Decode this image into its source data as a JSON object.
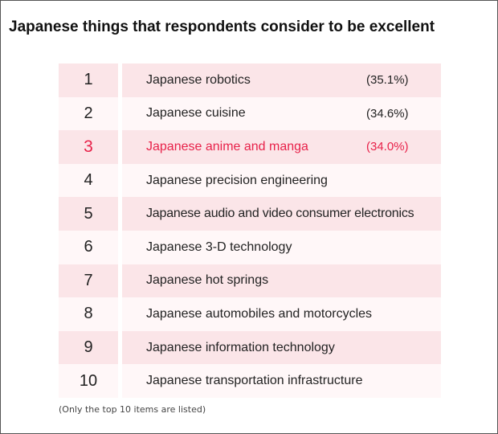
{
  "title": "Japanese things that respondents consider to be excellent",
  "highlight_color": "#e8224a",
  "row_colors": {
    "odd": "#fbe5e8",
    "even": "#fff7f8"
  },
  "rows": [
    {
      "rank": "1",
      "item": "Japanese robotics",
      "percent": "(35.1%)",
      "highlighted": false
    },
    {
      "rank": "2",
      "item": "Japanese cuisine",
      "percent": "(34.6%)",
      "highlighted": false
    },
    {
      "rank": "3",
      "item": "Japanese anime and manga",
      "percent": "(34.0%)",
      "highlighted": true
    },
    {
      "rank": "4",
      "item": "Japanese precision engineering",
      "percent": "",
      "highlighted": false
    },
    {
      "rank": "5",
      "item": "Japanese audio and video consumer electronics",
      "percent": "",
      "highlighted": false
    },
    {
      "rank": "6",
      "item": "Japanese 3-D technology",
      "percent": "",
      "highlighted": false
    },
    {
      "rank": "7",
      "item": "Japanese hot springs",
      "percent": "",
      "highlighted": false
    },
    {
      "rank": "8",
      "item": "Japanese automobiles and motorcycles",
      "percent": "",
      "highlighted": false
    },
    {
      "rank": "9",
      "item": "Japanese information technology",
      "percent": "",
      "highlighted": false
    },
    {
      "rank": "10",
      "item": "Japanese transportation infrastructure",
      "percent": "",
      "highlighted": false
    }
  ],
  "footnote": "(Only the top 10 items are listed)"
}
